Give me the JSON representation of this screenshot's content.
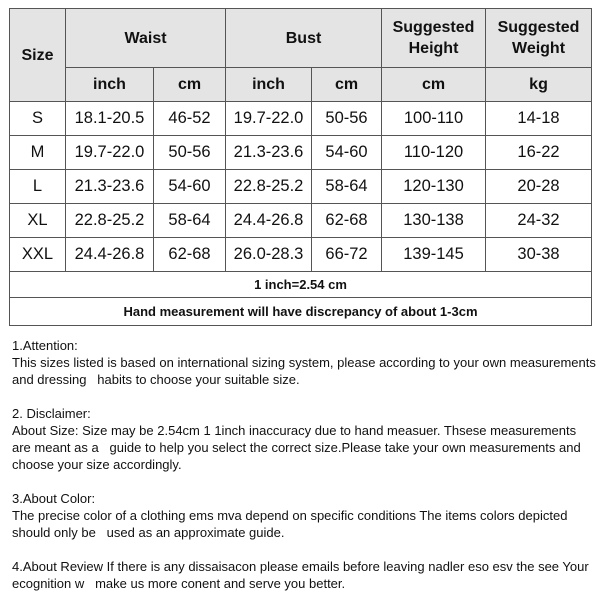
{
  "table": {
    "headers": {
      "size": "Size",
      "waist": "Waist",
      "bust": "Bust",
      "height": "Suggested Height",
      "weight": "Suggested Weight",
      "waist_inch": "inch",
      "waist_cm": "cm",
      "bust_inch": "inch",
      "bust_cm": "cm",
      "height_cm": "cm",
      "weight_kg": "kg"
    },
    "rows": [
      [
        "S",
        "18.1-20.5",
        "46-52",
        "19.7-22.0",
        "50-56",
        "100-110",
        "14-18"
      ],
      [
        "M",
        "19.7-22.0",
        "50-56",
        "21.3-23.6",
        "54-60",
        "110-120",
        "16-22"
      ],
      [
        "L",
        "21.3-23.6",
        "54-60",
        "22.8-25.2",
        "58-64",
        "120-130",
        "20-28"
      ],
      [
        "XL",
        "22.8-25.2",
        "58-64",
        "24.4-26.8",
        "62-68",
        "130-138",
        "24-32"
      ],
      [
        "XXL",
        "24.4-26.8",
        "62-68",
        "26.0-28.3",
        "66-72",
        "139-145",
        "30-38"
      ]
    ],
    "conversion": "1 inch=2.54 cm",
    "discrepancy": "Hand measurement will have discrepancy of about 1-3cm"
  },
  "notes": [
    {
      "title": "1.Attention:",
      "body": "This sizes listed is based on international sizing system, please according to your own measurements and dressing   habits to choose your suitable size."
    },
    {
      "title": "2. Disclaimer:",
      "body": "About Size: Size may be 2.54cm 1 1inch inaccuracy due to hand measuer. Thsese measurements are meant as a   guide to help you select the correct size.Please take your own measurements and choose your size accordingly."
    },
    {
      "title": "3.About Color:",
      "body": "The precise color of a clothing ems mva depend on specific conditions The items colors depicted should only be   used as an approximate guide."
    },
    {
      "title": "",
      "body": "4.About Review If there is any dissaisacon please emails before leaving nadler eso esv the see Your ecognition w   make us more conent and serve you better."
    }
  ]
}
